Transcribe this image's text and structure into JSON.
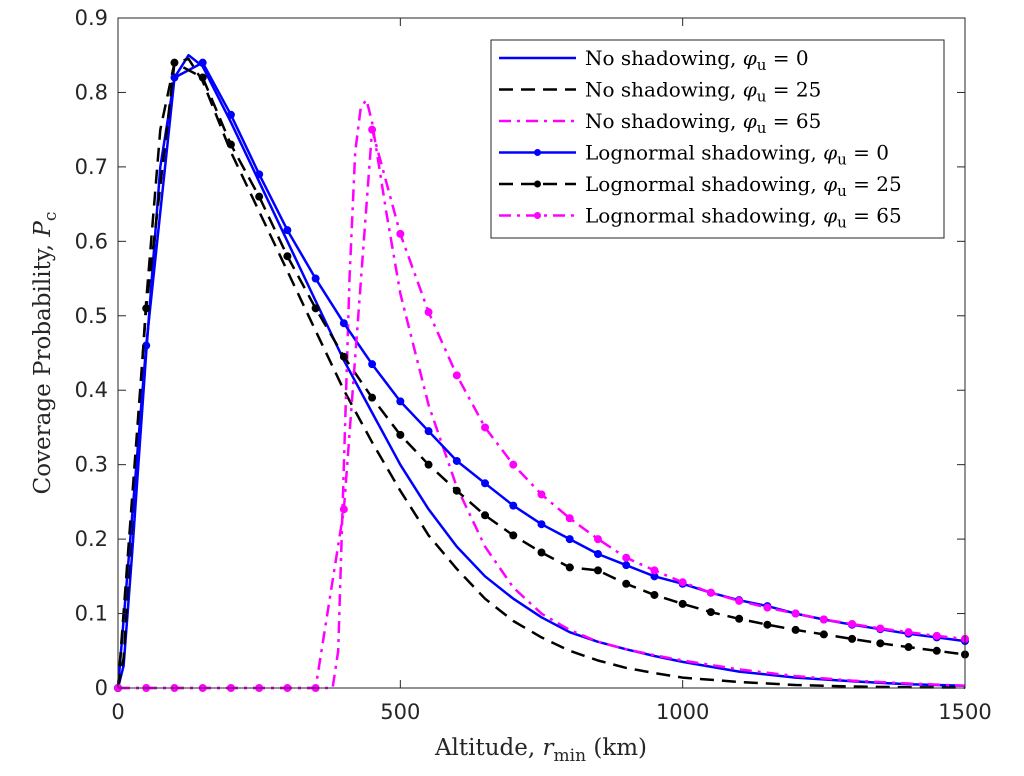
{
  "chart_data": {
    "type": "line",
    "title": "",
    "xlabel": {
      "prefix": "Altitude, ",
      "var": "r",
      "sub": "min",
      "suffix": " (km)"
    },
    "ylabel": {
      "prefix": "Coverage Probability, ",
      "var": "P",
      "sub": "c"
    },
    "xlim": [
      0,
      1500
    ],
    "ylim": [
      0,
      0.9
    ],
    "xticks": [
      0,
      500,
      1000,
      1500
    ],
    "yticks": [
      0,
      0.1,
      0.2,
      0.3,
      0.4,
      0.5,
      0.6,
      0.7,
      0.8,
      0.9
    ],
    "grid": false,
    "legend_position": "top-right",
    "series": [
      {
        "name": "No shadowing, φu = 0",
        "legend": {
          "text": "No shadowing, ",
          "var": "φ",
          "sub": "u",
          "eq": " = 0"
        },
        "color": "#0000ff",
        "dash": "solid",
        "marker": false,
        "x": [
          0,
          10,
          25,
          50,
          75,
          100,
          125,
          150,
          200,
          250,
          300,
          350,
          400,
          450,
          500,
          550,
          600,
          650,
          700,
          750,
          800,
          850,
          900,
          950,
          1000,
          1100,
          1200,
          1300,
          1400,
          1500
        ],
        "y": [
          0,
          0.03,
          0.18,
          0.45,
          0.7,
          0.82,
          0.85,
          0.835,
          0.76,
          0.68,
          0.6,
          0.52,
          0.44,
          0.37,
          0.3,
          0.24,
          0.19,
          0.15,
          0.12,
          0.095,
          0.075,
          0.062,
          0.052,
          0.043,
          0.035,
          0.022,
          0.014,
          0.009,
          0.005,
          0.003
        ]
      },
      {
        "name": "No shadowing, φu = 25",
        "legend": {
          "text": "No shadowing, ",
          "var": "φ",
          "sub": "u",
          "eq": " = 25"
        },
        "color": "#000000",
        "dash": "dashed",
        "marker": false,
        "x": [
          0,
          10,
          25,
          50,
          75,
          100,
          125,
          150,
          200,
          250,
          300,
          350,
          400,
          450,
          500,
          550,
          600,
          650,
          700,
          750,
          800,
          850,
          900,
          950,
          1000,
          1100,
          1200,
          1300,
          1400,
          1500
        ],
        "y": [
          0,
          0.04,
          0.22,
          0.52,
          0.75,
          0.84,
          0.845,
          0.815,
          0.72,
          0.64,
          0.56,
          0.48,
          0.4,
          0.33,
          0.265,
          0.205,
          0.16,
          0.12,
          0.09,
          0.068,
          0.05,
          0.037,
          0.027,
          0.02,
          0.014,
          0.008,
          0.004,
          0.002,
          0.001,
          0.0005
        ]
      },
      {
        "name": "No shadowing, φu = 65",
        "legend": {
          "text": "No shadowing, ",
          "var": "φ",
          "sub": "u",
          "eq": " = 65"
        },
        "color": "#ff00ff",
        "dash": "dashdot",
        "marker": false,
        "x": [
          0,
          380,
          390,
          400,
          410,
          420,
          430,
          440,
          450,
          475,
          500,
          550,
          600,
          650,
          700,
          750,
          800,
          850,
          900,
          950,
          1000,
          1100,
          1200,
          1300,
          1400,
          1500
        ],
        "y": [
          0,
          0,
          0.05,
          0.3,
          0.55,
          0.72,
          0.78,
          0.79,
          0.76,
          0.64,
          0.53,
          0.38,
          0.27,
          0.19,
          0.135,
          0.1,
          0.078,
          0.062,
          0.052,
          0.044,
          0.037,
          0.025,
          0.016,
          0.01,
          0.006,
          0.003
        ]
      },
      {
        "name": "Lognormal shadowing, φu = 0",
        "legend": {
          "text": "Lognormal shadowing, ",
          "var": "φ",
          "sub": "u",
          "eq": " = 0"
        },
        "color": "#0000ff",
        "dash": "solid",
        "marker": true,
        "x": [
          0,
          50,
          100,
          150,
          200,
          250,
          300,
          350,
          400,
          450,
          500,
          550,
          600,
          650,
          700,
          750,
          800,
          850,
          900,
          950,
          1000,
          1050,
          1100,
          1150,
          1200,
          1250,
          1300,
          1350,
          1400,
          1450,
          1500
        ],
        "y": [
          0,
          0.46,
          0.82,
          0.84,
          0.77,
          0.69,
          0.615,
          0.55,
          0.49,
          0.435,
          0.385,
          0.345,
          0.305,
          0.275,
          0.245,
          0.22,
          0.2,
          0.18,
          0.165,
          0.15,
          0.14,
          0.128,
          0.118,
          0.11,
          0.1,
          0.092,
          0.085,
          0.079,
          0.073,
          0.068,
          0.063
        ]
      },
      {
        "name": "Lognormal shadowing, φu = 25",
        "legend": {
          "text": "Lognormal shadowing, ",
          "var": "φ",
          "sub": "u",
          "eq": " = 25"
        },
        "color": "#000000",
        "dash": "dashed",
        "marker": true,
        "x": [
          0,
          50,
          100,
          150,
          200,
          250,
          300,
          350,
          400,
          450,
          500,
          550,
          600,
          650,
          700,
          750,
          800,
          850,
          900,
          950,
          1000,
          1050,
          1100,
          1150,
          1200,
          1250,
          1300,
          1350,
          1400,
          1450,
          1500
        ],
        "y": [
          0,
          0.51,
          0.84,
          0.82,
          0.73,
          0.66,
          0.58,
          0.51,
          0.445,
          0.39,
          0.34,
          0.3,
          0.265,
          0.232,
          0.205,
          0.182,
          0.162,
          0.158,
          0.14,
          0.125,
          0.113,
          0.102,
          0.093,
          0.085,
          0.078,
          0.072,
          0.066,
          0.06,
          0.055,
          0.05,
          0.045
        ]
      },
      {
        "name": "Lognormal shadowing, φu = 65",
        "legend": {
          "text": "Lognormal shadowing, ",
          "var": "φ",
          "sub": "u",
          "eq": " = 65"
        },
        "color": "#ff00ff",
        "dash": "dashdot",
        "marker": true,
        "x": [
          0,
          50,
          100,
          150,
          200,
          250,
          300,
          350,
          400,
          450,
          500,
          550,
          600,
          650,
          700,
          750,
          800,
          850,
          900,
          950,
          1000,
          1050,
          1100,
          1150,
          1200,
          1250,
          1300,
          1350,
          1400,
          1450,
          1500
        ],
        "y": [
          0,
          0,
          0,
          0,
          0,
          0,
          0,
          0,
          0.24,
          0.75,
          0.61,
          0.505,
          0.42,
          0.35,
          0.3,
          0.26,
          0.228,
          0.2,
          0.175,
          0.158,
          0.142,
          0.128,
          0.117,
          0.108,
          0.1,
          0.092,
          0.086,
          0.08,
          0.075,
          0.07,
          0.066
        ]
      }
    ]
  }
}
